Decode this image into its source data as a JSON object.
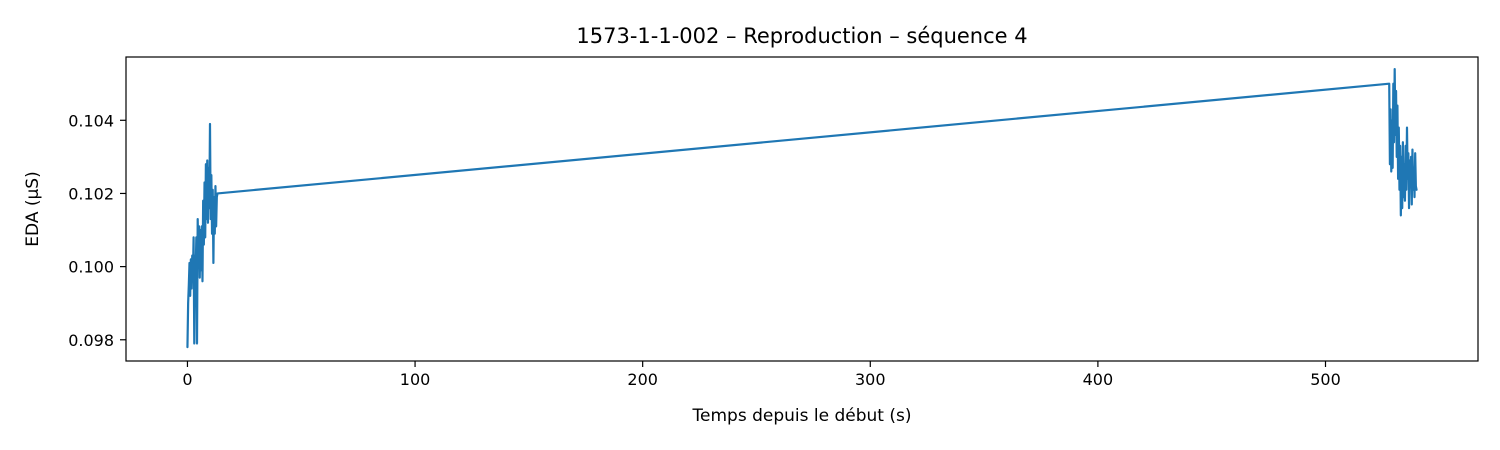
{
  "chart_data": {
    "type": "line",
    "title": "1573-1-1-002 – Reproduction – séquence 4",
    "xlabel": "Temps depuis le début (s)",
    "ylabel": "EDA (µS)",
    "xlim": [
      -27,
      567
    ],
    "ylim": [
      0.09742,
      0.10573
    ],
    "xticks": [
      0,
      100,
      200,
      300,
      400,
      500
    ],
    "yticks": [
      0.098,
      0.1,
      0.102,
      0.104
    ],
    "ytick_labels": [
      "0.098",
      "0.100",
      "0.102",
      "0.104"
    ],
    "grid": false,
    "legend": "none",
    "colors": {
      "series": "#1f77b4"
    },
    "series": [
      {
        "x": [
          0,
          0.3,
          0.6,
          0.9,
          1.2,
          1.5,
          1.8,
          2.1,
          2.4,
          2.7,
          3.0,
          3.3,
          3.6,
          3.9,
          4.2,
          4.5,
          4.8,
          5.1,
          5.4,
          5.7,
          6.0,
          6.3,
          6.6,
          6.9,
          7.2,
          7.5,
          7.8,
          8.1,
          8.4,
          8.7,
          9.0,
          9.3,
          9.6,
          9.9,
          10.2,
          10.5,
          10.8,
          11.1,
          11.4,
          11.7,
          12.0,
          12.3,
          12.6,
          12.9,
          13.2,
          528,
          528.3,
          528.6,
          528.9,
          529.2,
          529.5,
          529.8,
          530.1,
          530.4,
          530.7,
          531.0,
          531.3,
          531.6,
          531.9,
          532.2,
          532.5,
          532.8,
          533.1,
          533.4,
          533.7,
          534.0,
          534.3,
          534.6,
          534.9,
          535.2,
          535.5,
          535.8,
          536.1,
          536.4,
          536.7,
          537.0,
          537.3,
          537.6,
          537.9,
          538.2,
          538.5,
          538.8,
          539.1,
          539.4,
          539.7,
          540.0
        ],
        "y": [
          0.0978,
          0.099,
          0.0995,
          0.1001,
          0.0992,
          0.1002,
          0.0994,
          0.1003,
          0.0997,
          0.1008,
          0.0979,
          0.1003,
          0.0998,
          0.1008,
          0.0979,
          0.1013,
          0.1001,
          0.1011,
          0.0997,
          0.101,
          0.0999,
          0.1011,
          0.0996,
          0.1018,
          0.1006,
          0.1023,
          0.1008,
          0.1028,
          0.1013,
          0.1029,
          0.1012,
          0.1027,
          0.1016,
          0.1039,
          0.1013,
          0.1025,
          0.1009,
          0.1021,
          0.1001,
          0.1019,
          0.1009,
          0.1022,
          0.1011,
          0.1019,
          0.102,
          0.105,
          0.1028,
          0.1043,
          0.1026,
          0.104,
          0.1027,
          0.105,
          0.1034,
          0.1054,
          0.1036,
          0.1048,
          0.103,
          0.1044,
          0.1024,
          0.1038,
          0.1021,
          0.1033,
          0.1014,
          0.103,
          0.1016,
          0.1034,
          0.1019,
          0.1028,
          0.1018,
          0.1033,
          0.1021,
          0.1038,
          0.1024,
          0.1031,
          0.1016,
          0.1029,
          0.1022,
          0.103,
          0.1017,
          0.1032,
          0.1021,
          0.1027,
          0.1019,
          0.1031,
          0.1022,
          0.1021
        ]
      }
    ]
  }
}
